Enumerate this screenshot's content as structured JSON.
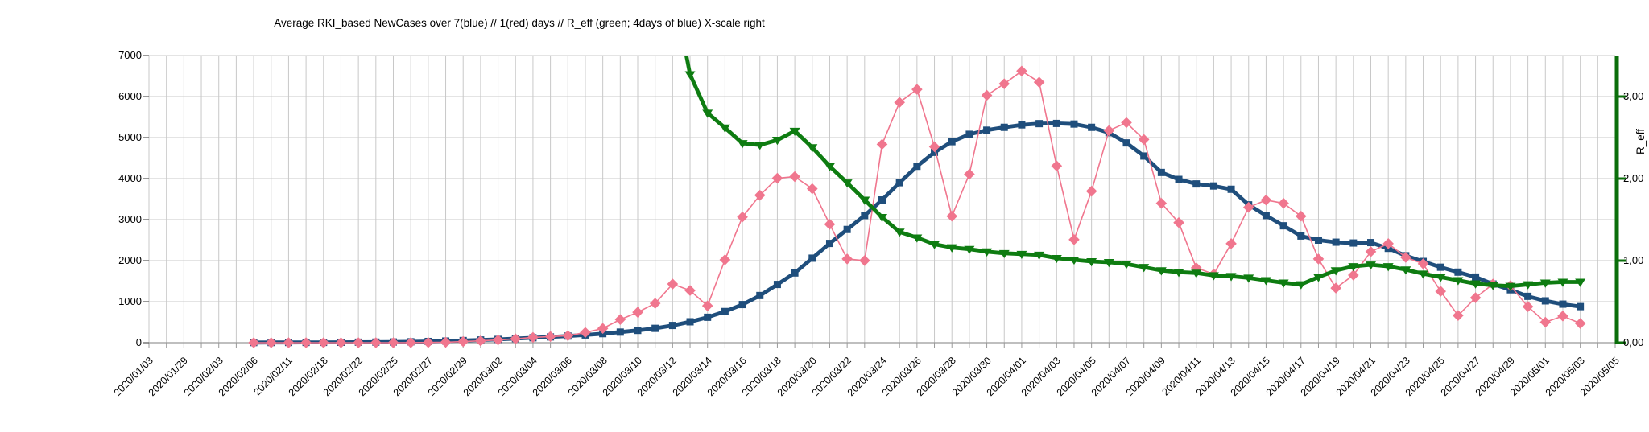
{
  "title": "Average RKI_based NewCases over 7(blue) // 1(red) days //  R_eff (green; 4days of blue) X-scale right",
  "colors": {
    "blue_series": "#1F4E7C",
    "red_series": "#F0768E",
    "green_series": "#0E7C11",
    "right_axis_green": "#0A6E0A",
    "grid": "#C8C8C8",
    "axis_gray": "#999999",
    "text": "#000000",
    "background": "#FFFFFF"
  },
  "chart_data": {
    "type": "line",
    "title": "Average RKI_based NewCases over 7(blue) // 1(red) days //  R_eff (green; 4days of blue) X-scale right",
    "grid": true,
    "legend": "none (series identified in title)",
    "x_count": 85,
    "labels_every_n_points": 2,
    "x_tick_labels": [
      "2020/01/03",
      "2020/01/29",
      "2020/02/03",
      "2020/02/06",
      "2020/02/11",
      "2020/02/18",
      "2020/02/22",
      "2020/02/25",
      "2020/02/27",
      "2020/02/29",
      "2020/03/02",
      "2020/03/04",
      "2020/03/06",
      "2020/03/08",
      "2020/03/10",
      "2020/03/12",
      "2020/03/14",
      "2020/03/16",
      "2020/03/18",
      "2020/03/20",
      "2020/03/22",
      "2020/03/24",
      "2020/03/26",
      "2020/03/28",
      "2020/03/30",
      "2020/04/01",
      "2020/04/03",
      "2020/04/05",
      "2020/04/07",
      "2020/04/09",
      "2020/04/11",
      "2020/04/13",
      "2020/04/15",
      "2020/04/17",
      "2020/04/19",
      "2020/04/21",
      "2020/04/23",
      "2020/04/25",
      "2020/04/27",
      "2020/04/29",
      "2020/05/01",
      "2020/05/03",
      "2020/05/05"
    ],
    "left_axis": {
      "min": 0,
      "max": 7000,
      "ticks": [
        0,
        1000,
        2000,
        3000,
        4000,
        5000,
        6000,
        7000
      ]
    },
    "right_axis": {
      "title": "R_eff",
      "min": 0,
      "max": 3.5,
      "tick_values": [
        0,
        1,
        2,
        3
      ],
      "tick_labels": [
        "0,00",
        "1,00",
        "2,00",
        "3,00"
      ]
    },
    "series": [
      {
        "name": "NewCases 7-day average (blue)",
        "axis": "left",
        "color": "#1F4E7C",
        "marker": "square",
        "line_width": 4.8,
        "points": [
          [
            6,
            4
          ],
          [
            7,
            5
          ],
          [
            8,
            6
          ],
          [
            9,
            7
          ],
          [
            10,
            8
          ],
          [
            11,
            10
          ],
          [
            12,
            12
          ],
          [
            13,
            14
          ],
          [
            14,
            17
          ],
          [
            15,
            22
          ],
          [
            16,
            30
          ],
          [
            17,
            40
          ],
          [
            18,
            52
          ],
          [
            19,
            66
          ],
          [
            20,
            80
          ],
          [
            21,
            100
          ],
          [
            22,
            120
          ],
          [
            23,
            140
          ],
          [
            24,
            162
          ],
          [
            25,
            188
          ],
          [
            26,
            220
          ],
          [
            27,
            258
          ],
          [
            28,
            300
          ],
          [
            29,
            350
          ],
          [
            30,
            420
          ],
          [
            31,
            510
          ],
          [
            32,
            620
          ],
          [
            33,
            760
          ],
          [
            34,
            930
          ],
          [
            35,
            1150
          ],
          [
            36,
            1420
          ],
          [
            37,
            1700
          ],
          [
            38,
            2060
          ],
          [
            39,
            2420
          ],
          [
            40,
            2760
          ],
          [
            41,
            3100
          ],
          [
            42,
            3480
          ],
          [
            43,
            3900
          ],
          [
            44,
            4300
          ],
          [
            45,
            4640
          ],
          [
            46,
            4900
          ],
          [
            47,
            5080
          ],
          [
            48,
            5180
          ],
          [
            49,
            5250
          ],
          [
            50,
            5310
          ],
          [
            51,
            5340
          ],
          [
            52,
            5345
          ],
          [
            53,
            5330
          ],
          [
            54,
            5250
          ],
          [
            55,
            5120
          ],
          [
            56,
            4870
          ],
          [
            57,
            4550
          ],
          [
            58,
            4150
          ],
          [
            59,
            3980
          ],
          [
            60,
            3870
          ],
          [
            61,
            3820
          ],
          [
            62,
            3740
          ],
          [
            63,
            3360
          ],
          [
            64,
            3100
          ],
          [
            65,
            2850
          ],
          [
            66,
            2600
          ],
          [
            67,
            2500
          ],
          [
            68,
            2450
          ],
          [
            69,
            2430
          ],
          [
            70,
            2440
          ],
          [
            71,
            2300
          ],
          [
            72,
            2120
          ],
          [
            73,
            1980
          ],
          [
            74,
            1840
          ],
          [
            75,
            1720
          ],
          [
            76,
            1600
          ],
          [
            77,
            1430
          ],
          [
            78,
            1290
          ],
          [
            79,
            1130
          ],
          [
            80,
            1020
          ],
          [
            81,
            940
          ],
          [
            82,
            880
          ]
        ]
      },
      {
        "name": "NewCases daily (red)",
        "axis": "left",
        "color": "#F0768E",
        "marker": "diamond",
        "line_width": 1.6,
        "points": [
          [
            6,
            0
          ],
          [
            7,
            0
          ],
          [
            8,
            0
          ],
          [
            9,
            0
          ],
          [
            10,
            0
          ],
          [
            11,
            0
          ],
          [
            12,
            0
          ],
          [
            13,
            0
          ],
          [
            14,
            0
          ],
          [
            15,
            2
          ],
          [
            16,
            5
          ],
          [
            17,
            12
          ],
          [
            18,
            28
          ],
          [
            19,
            45
          ],
          [
            20,
            66
          ],
          [
            21,
            95
          ],
          [
            22,
            130
          ],
          [
            23,
            150
          ],
          [
            24,
            171
          ],
          [
            25,
            250
          ],
          [
            26,
            348
          ],
          [
            27,
            565
          ],
          [
            28,
            742
          ],
          [
            29,
            959
          ],
          [
            30,
            1431
          ],
          [
            31,
            1273
          ],
          [
            32,
            899
          ],
          [
            33,
            2021
          ],
          [
            34,
            3064
          ],
          [
            35,
            3595
          ],
          [
            36,
            4009
          ],
          [
            37,
            4048
          ],
          [
            38,
            3753
          ],
          [
            39,
            2887
          ],
          [
            40,
            2041
          ],
          [
            41,
            2002
          ],
          [
            42,
            4836
          ],
          [
            43,
            5859
          ],
          [
            44,
            6174
          ],
          [
            45,
            4777
          ],
          [
            46,
            3084
          ],
          [
            47,
            4108
          ],
          [
            48,
            6030
          ],
          [
            49,
            6311
          ],
          [
            50,
            6622
          ],
          [
            51,
            6350
          ],
          [
            52,
            4310
          ],
          [
            53,
            2513
          ],
          [
            54,
            3693
          ],
          [
            55,
            5171
          ],
          [
            56,
            5364
          ],
          [
            57,
            4953
          ],
          [
            58,
            3398
          ],
          [
            59,
            2927
          ],
          [
            60,
            1825
          ],
          [
            61,
            1670
          ],
          [
            62,
            2415
          ],
          [
            63,
            3300
          ],
          [
            64,
            3477
          ],
          [
            65,
            3398
          ],
          [
            66,
            3084
          ],
          [
            67,
            2041
          ],
          [
            68,
            1332
          ],
          [
            69,
            1647
          ],
          [
            70,
            2218
          ],
          [
            71,
            2415
          ],
          [
            72,
            2080
          ],
          [
            73,
            1923
          ],
          [
            74,
            1253
          ],
          [
            75,
            663
          ],
          [
            76,
            1096
          ],
          [
            77,
            1430
          ],
          [
            78,
            1391
          ],
          [
            79,
            879
          ],
          [
            80,
            500
          ],
          [
            81,
            650
          ],
          [
            82,
            470
          ]
        ]
      },
      {
        "name": "R_eff (green)",
        "axis": "right",
        "color": "#0E7C11",
        "marker": "triangle-down",
        "line_width": 4.8,
        "points": [
          [
            30,
            4.35
          ],
          [
            31,
            3.27
          ],
          [
            32,
            2.8
          ],
          [
            33,
            2.62
          ],
          [
            34,
            2.43
          ],
          [
            35,
            2.41
          ],
          [
            36,
            2.47
          ],
          [
            37,
            2.58
          ],
          [
            38,
            2.38
          ],
          [
            39,
            2.15
          ],
          [
            40,
            1.95
          ],
          [
            41,
            1.74
          ],
          [
            42,
            1.53
          ],
          [
            43,
            1.35
          ],
          [
            44,
            1.28
          ],
          [
            45,
            1.2
          ],
          [
            46,
            1.16
          ],
          [
            47,
            1.14
          ],
          [
            48,
            1.11
          ],
          [
            49,
            1.09
          ],
          [
            50,
            1.08
          ],
          [
            51,
            1.07
          ],
          [
            52,
            1.03
          ],
          [
            53,
            1.01
          ],
          [
            54,
            0.99
          ],
          [
            55,
            0.98
          ],
          [
            56,
            0.96
          ],
          [
            57,
            0.92
          ],
          [
            58,
            0.88
          ],
          [
            59,
            0.86
          ],
          [
            60,
            0.85
          ],
          [
            61,
            0.82
          ],
          [
            62,
            0.81
          ],
          [
            63,
            0.79
          ],
          [
            64,
            0.76
          ],
          [
            65,
            0.73
          ],
          [
            66,
            0.71
          ],
          [
            67,
            0.8
          ],
          [
            68,
            0.88
          ],
          [
            69,
            0.93
          ],
          [
            70,
            0.95
          ],
          [
            71,
            0.93
          ],
          [
            72,
            0.89
          ],
          [
            73,
            0.84
          ],
          [
            74,
            0.8
          ],
          [
            75,
            0.76
          ],
          [
            76,
            0.72
          ],
          [
            77,
            0.7
          ],
          [
            78,
            0.69
          ],
          [
            79,
            0.71
          ],
          [
            80,
            0.73
          ],
          [
            81,
            0.74
          ],
          [
            82,
            0.74
          ]
        ]
      }
    ]
  }
}
